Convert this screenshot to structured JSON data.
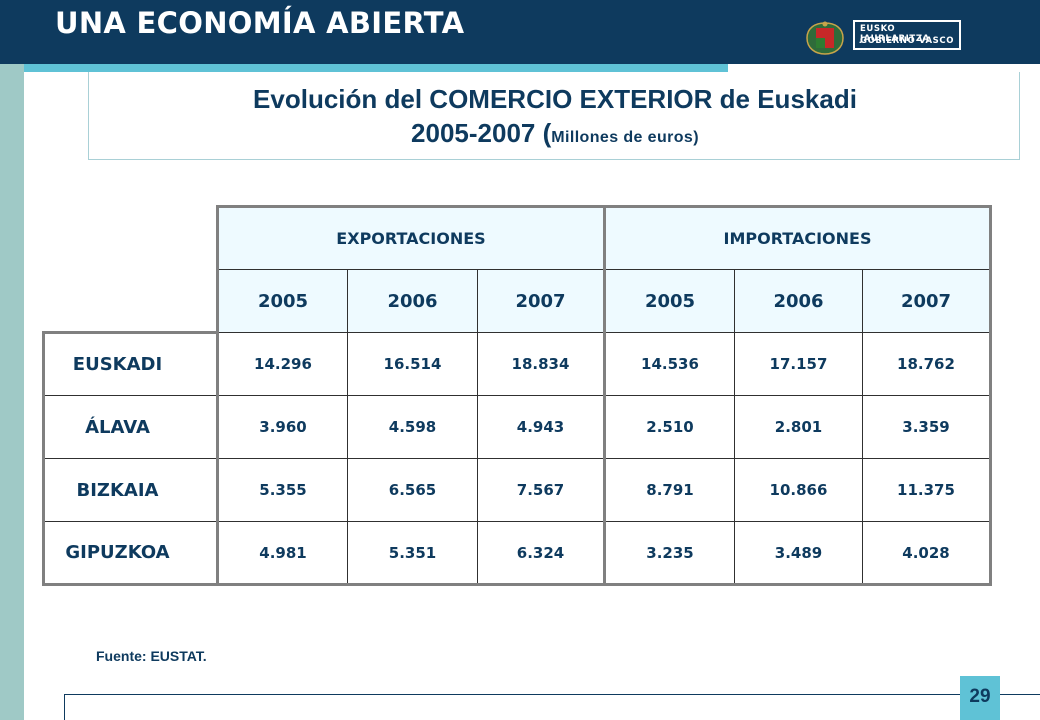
{
  "header": {
    "title": "UNA ECONOMÍA ABIERTA"
  },
  "logo": {
    "line1": "EUSKO JAURLARITZA",
    "line2": "GOBIERNO VASCO"
  },
  "slide_title": {
    "line1": "Evolución del COMERCIO EXTERIOR de Euskadi",
    "years": "2005-2007",
    "paren_open": "(",
    "unit": "Millones de euros)"
  },
  "table": {
    "groups": [
      "EXPORTACIONES",
      "IMPORTACIONES"
    ],
    "years": [
      "2005",
      "2006",
      "2007",
      "2005",
      "2006",
      "2007"
    ],
    "rows": [
      {
        "label": "EUSKADI",
        "values": [
          "14.296",
          "16.514",
          "18.834",
          "14.536",
          "17.157",
          "18.762"
        ]
      },
      {
        "label": "ÁLAVA",
        "values": [
          "3.960",
          "4.598",
          "4.943",
          "2.510",
          "2.801",
          "3.359"
        ]
      },
      {
        "label": "BIZKAIA",
        "values": [
          "5.355",
          "6.565",
          "7.567",
          "8.791",
          "10.866",
          "11.375"
        ]
      },
      {
        "label": "GIPUZKOA",
        "values": [
          "4.981",
          "5.351",
          "6.324",
          "3.235",
          "3.489",
          "4.028"
        ]
      }
    ]
  },
  "source": "Fuente: EUSTAT.",
  "page_number": "29",
  "colors": {
    "navy": "#0e3a5e",
    "cyan": "#5fc2d6",
    "teal_band": "#9fc9c6",
    "header_cell": "#eefaff"
  }
}
